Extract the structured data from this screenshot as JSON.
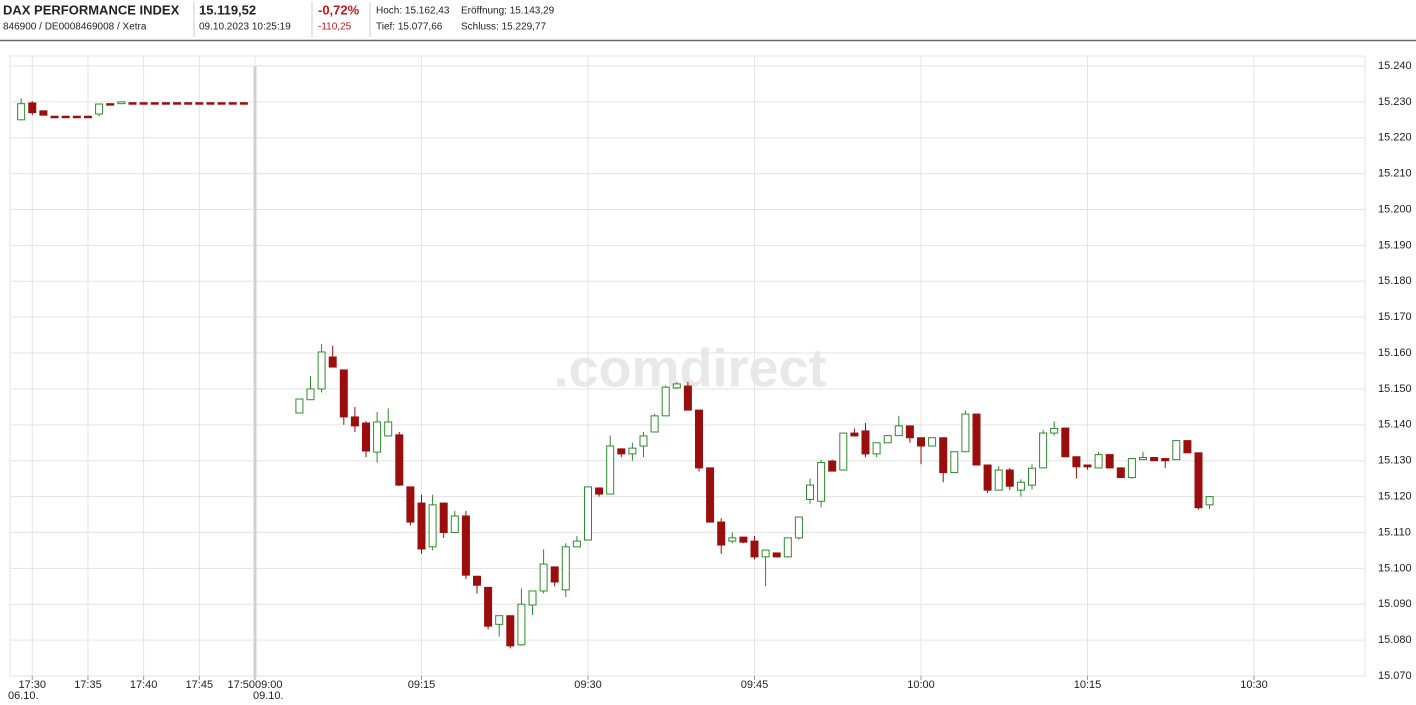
{
  "header": {
    "name": "DAX PERFORMANCE INDEX",
    "ids": "846900 / DE0008469008 / Xetra",
    "price": "15.119,52",
    "timestamp": "09.10.2023 10:25:19",
    "change_pct": "-0,72%",
    "change_abs": "-110,25",
    "high": "Hoch: 15.162,43",
    "low": "Tief: 15.077,66",
    "open": "Eröffnung: 15.143,29",
    "close": "Schluss: 15.229,77"
  },
  "chart_data": {
    "type": "candlestick",
    "watermark": ".comdirect",
    "grid": true,
    "up_color": "#2e8b2e",
    "down_color": "#9b0e0e",
    "ylim": [
      15070,
      15240
    ],
    "yticks": [
      {
        "value": 15070,
        "label": "15.070"
      },
      {
        "value": 15080,
        "label": "15.080"
      },
      {
        "value": 15090,
        "label": "15.090"
      },
      {
        "value": 15100,
        "label": "15.100"
      },
      {
        "value": 15110,
        "label": "15.110"
      },
      {
        "value": 15120,
        "label": "15.120"
      },
      {
        "value": 15130,
        "label": "15.130"
      },
      {
        "value": 15140,
        "label": "15.140"
      },
      {
        "value": 15150,
        "label": "15.150"
      },
      {
        "value": 15160,
        "label": "15.160"
      },
      {
        "value": 15170,
        "label": "15.170"
      },
      {
        "value": 15180,
        "label": "15.180"
      },
      {
        "value": 15190,
        "label": "15.190"
      },
      {
        "value": 15200,
        "label": "15.200"
      },
      {
        "value": 15210,
        "label": "15.210"
      },
      {
        "value": 15220,
        "label": "15.220"
      },
      {
        "value": 15230,
        "label": "15.230"
      },
      {
        "value": 15240,
        "label": "15.240"
      }
    ],
    "sessions": [
      {
        "date": "06.10.",
        "xlim": [
          "17:28",
          "17:50"
        ],
        "xticks": [
          "17:30",
          "17:35",
          "17:40",
          "17:45",
          "17:50"
        ],
        "candles": [
          {
            "t": "17:29",
            "o": 15225,
            "h": 15231,
            "l": 15225,
            "c": 15229.5
          },
          {
            "t": "17:30",
            "o": 15229.7,
            "h": 15230.2,
            "l": 15226.3,
            "c": 15227
          },
          {
            "t": "17:31",
            "o": 15227.5,
            "h": 15227.5,
            "l": 15226.3,
            "c": 15226.3
          },
          {
            "t": "17:32",
            "o": 15226,
            "h": 15226,
            "l": 15226,
            "c": 15226
          },
          {
            "t": "17:33",
            "o": 15226,
            "h": 15226,
            "l": 15226,
            "c": 15226
          },
          {
            "t": "17:34",
            "o": 15226,
            "h": 15226,
            "l": 15226,
            "c": 15226
          },
          {
            "t": "17:35",
            "o": 15226,
            "h": 15226,
            "l": 15226,
            "c": 15226
          },
          {
            "t": "17:36",
            "o": 15226.6,
            "h": 15229.4,
            "l": 15226,
            "c": 15229.4
          },
          {
            "t": "17:37",
            "o": 15229.5,
            "h": 15229.5,
            "l": 15229.5,
            "c": 15229.5
          },
          {
            "t": "17:38",
            "o": 15229.5,
            "h": 15230,
            "l": 15229.5,
            "c": 15230
          },
          {
            "t": "17:39",
            "o": 15229.77,
            "h": 15229.77,
            "l": 15229.77,
            "c": 15229.77
          },
          {
            "t": "17:40",
            "o": 15229.77,
            "h": 15229.77,
            "l": 15229.77,
            "c": 15229.77
          },
          {
            "t": "17:41",
            "o": 15229.77,
            "h": 15229.77,
            "l": 15229.77,
            "c": 15229.77
          },
          {
            "t": "17:42",
            "o": 15229.77,
            "h": 15229.77,
            "l": 15229.77,
            "c": 15229.77
          },
          {
            "t": "17:43",
            "o": 15229.77,
            "h": 15229.77,
            "l": 15229.77,
            "c": 15229.77
          },
          {
            "t": "17:44",
            "o": 15229.77,
            "h": 15229.77,
            "l": 15229.77,
            "c": 15229.77
          },
          {
            "t": "17:45",
            "o": 15229.77,
            "h": 15229.77,
            "l": 15229.77,
            "c": 15229.77
          },
          {
            "t": "17:46",
            "o": 15229.77,
            "h": 15229.77,
            "l": 15229.77,
            "c": 15229.77
          },
          {
            "t": "17:47",
            "o": 15229.77,
            "h": 15229.77,
            "l": 15229.77,
            "c": 15229.77
          },
          {
            "t": "17:48",
            "o": 15229.77,
            "h": 15229.77,
            "l": 15229.77,
            "c": 15229.77
          },
          {
            "t": "17:49",
            "o": 15229.77,
            "h": 15229.77,
            "l": 15229.77,
            "c": 15229.77
          }
        ]
      },
      {
        "date": "09.10.",
        "xlim": [
          "09:00",
          "10:40"
        ],
        "xticks": [
          "09:00",
          "09:15",
          "09:30",
          "09:45",
          "10:00",
          "10:15",
          "10:30"
        ],
        "candles": [
          {
            "t": "09:04",
            "o": 15143.3,
            "h": 15147.2,
            "l": 15143.3,
            "c": 15147.2
          },
          {
            "t": "09:05",
            "o": 15147,
            "h": 15153.6,
            "l": 15147,
            "c": 15150
          },
          {
            "t": "09:06",
            "o": 15150,
            "h": 15162.5,
            "l": 15149,
            "c": 15160.3
          },
          {
            "t": "09:07",
            "o": 15158.9,
            "h": 15162,
            "l": 15156,
            "c": 15156.1
          },
          {
            "t": "09:08",
            "o": 15155.3,
            "h": 15155.3,
            "l": 15140,
            "c": 15142.2
          },
          {
            "t": "09:09",
            "o": 15142.2,
            "h": 15145,
            "l": 15138,
            "c": 15139.7
          },
          {
            "t": "09:10",
            "o": 15140.5,
            "h": 15141,
            "l": 15131,
            "c": 15132.7
          },
          {
            "t": "09:11",
            "o": 15132.4,
            "h": 15143.6,
            "l": 15129.5,
            "c": 15140.8
          },
          {
            "t": "09:12",
            "o": 15136.9,
            "h": 15144.6,
            "l": 15136.9,
            "c": 15140.8
          },
          {
            "t": "09:13",
            "o": 15137.2,
            "h": 15138,
            "l": 15123,
            "c": 15123.2
          },
          {
            "t": "09:14",
            "o": 15122.7,
            "h": 15122.7,
            "l": 15112,
            "c": 15112.9
          },
          {
            "t": "09:15",
            "o": 15118.2,
            "h": 15120.5,
            "l": 15104,
            "c": 15105.4
          },
          {
            "t": "09:16",
            "o": 15106,
            "h": 15120.5,
            "l": 15105,
            "c": 15117.7
          },
          {
            "t": "09:17",
            "o": 15118.2,
            "h": 15118.2,
            "l": 15108.5,
            "c": 15110
          },
          {
            "t": "09:18",
            "o": 15110,
            "h": 15116,
            "l": 15110,
            "c": 15114.6
          },
          {
            "t": "09:19",
            "o": 15114.6,
            "h": 15116,
            "l": 15097,
            "c": 15098.1
          },
          {
            "t": "09:20",
            "o": 15097.8,
            "h": 15097.8,
            "l": 15093,
            "c": 15095.3
          },
          {
            "t": "09:21",
            "o": 15094.7,
            "h": 15094.7,
            "l": 15083,
            "c": 15083.9
          },
          {
            "t": "09:22",
            "o": 15084.4,
            "h": 15086.8,
            "l": 15081,
            "c": 15086.8
          },
          {
            "t": "09:23",
            "o": 15086.8,
            "h": 15086.8,
            "l": 15077.7,
            "c": 15078.4
          },
          {
            "t": "09:24",
            "o": 15078.7,
            "h": 15094.4,
            "l": 15078.4,
            "c": 15090
          },
          {
            "t": "09:25",
            "o": 15089.8,
            "h": 15093.7,
            "l": 15087,
            "c": 15093.7
          },
          {
            "t": "09:26",
            "o": 15093.7,
            "h": 15105.3,
            "l": 15093,
            "c": 15101.2
          },
          {
            "t": "09:27",
            "o": 15100.4,
            "h": 15100.4,
            "l": 15095,
            "c": 15096.2
          },
          {
            "t": "09:28",
            "o": 15094,
            "h": 15107,
            "l": 15092,
            "c": 15106
          },
          {
            "t": "09:29",
            "o": 15106,
            "h": 15109,
            "l": 15106,
            "c": 15107.6
          },
          {
            "t": "09:30",
            "o": 15107.9,
            "h": 15122.7,
            "l": 15107.9,
            "c": 15122.7
          },
          {
            "t": "09:31",
            "o": 15122.4,
            "h": 15122.4,
            "l": 15120,
            "c": 15120.7
          },
          {
            "t": "09:32",
            "o": 15120.7,
            "h": 15137,
            "l": 15120.7,
            "c": 15134.1
          },
          {
            "t": "09:33",
            "o": 15133.3,
            "h": 15133.3,
            "l": 15131,
            "c": 15131.9
          },
          {
            "t": "09:34",
            "o": 15131.9,
            "h": 15135,
            "l": 15130,
            "c": 15133.5
          },
          {
            "t": "09:35",
            "o": 15134.1,
            "h": 15138,
            "l": 15131,
            "c": 15136.9
          },
          {
            "t": "09:36",
            "o": 15138,
            "h": 15143,
            "l": 15138,
            "c": 15142.5
          },
          {
            "t": "09:37",
            "o": 15142.5,
            "h": 15151,
            "l": 15142.5,
            "c": 15150.5
          },
          {
            "t": "09:38",
            "o": 15150.3,
            "h": 15152,
            "l": 15150,
            "c": 15151.4
          },
          {
            "t": "09:39",
            "o": 15150.8,
            "h": 15152,
            "l": 15144,
            "c": 15144.1
          },
          {
            "t": "09:40",
            "o": 15144.1,
            "h": 15144.1,
            "l": 15127,
            "c": 15128
          },
          {
            "t": "09:41",
            "o": 15128,
            "h": 15128,
            "l": 15112.9,
            "c": 15112.9
          },
          {
            "t": "09:42",
            "o": 15112.9,
            "h": 15114,
            "l": 15104,
            "c": 15106.5
          },
          {
            "t": "09:43",
            "o": 15107.6,
            "h": 15110,
            "l": 15107,
            "c": 15108.5
          },
          {
            "t": "09:44",
            "o": 15108.7,
            "h": 15108.7,
            "l": 15107,
            "c": 15107.3
          },
          {
            "t": "09:45",
            "o": 15107.6,
            "h": 15109,
            "l": 15102.5,
            "c": 15103.2
          },
          {
            "t": "09:46",
            "o": 15103.2,
            "h": 15105.1,
            "l": 15095,
            "c": 15105.1
          },
          {
            "t": "09:47",
            "o": 15104.3,
            "h": 15104.3,
            "l": 15103,
            "c": 15103.2
          },
          {
            "t": "09:48",
            "o": 15103.2,
            "h": 15108.5,
            "l": 15103,
            "c": 15108.5
          },
          {
            "t": "09:49",
            "o": 15108.5,
            "h": 15114.3,
            "l": 15108,
            "c": 15114.3
          },
          {
            "t": "09:50",
            "o": 15119.2,
            "h": 15125,
            "l": 15118,
            "c": 15123.2
          },
          {
            "t": "09:51",
            "o": 15118.7,
            "h": 15130.3,
            "l": 15117,
            "c": 15129.5
          },
          {
            "t": "09:52",
            "o": 15129.9,
            "h": 15130.3,
            "l": 15127,
            "c": 15127.1
          },
          {
            "t": "09:53",
            "o": 15127.4,
            "h": 15137.7,
            "l": 15127.4,
            "c": 15137.7
          },
          {
            "t": "09:54",
            "o": 15137.7,
            "h": 15139,
            "l": 15136.9,
            "c": 15136.9
          },
          {
            "t": "09:55",
            "o": 15138.3,
            "h": 15140.5,
            "l": 15131,
            "c": 15131.9
          },
          {
            "t": "09:56",
            "o": 15131.9,
            "h": 15135,
            "l": 15131,
            "c": 15135
          },
          {
            "t": "09:57",
            "o": 15135,
            "h": 15137,
            "l": 15135,
            "c": 15137
          },
          {
            "t": "09:58",
            "o": 15137,
            "h": 15142.5,
            "l": 15137,
            "c": 15139.7
          },
          {
            "t": "09:59",
            "o": 15139.7,
            "h": 15139.7,
            "l": 15135,
            "c": 15136.4
          },
          {
            "t": "10:00",
            "o": 15136.4,
            "h": 15136.4,
            "l": 15129,
            "c": 15134.1
          },
          {
            "t": "10:01",
            "o": 15134.1,
            "h": 15136.4,
            "l": 15134,
            "c": 15136.4
          },
          {
            "t": "10:02",
            "o": 15136.4,
            "h": 15136.4,
            "l": 15124,
            "c": 15126.7
          },
          {
            "t": "10:03",
            "o": 15126.7,
            "h": 15132.5,
            "l": 15126.7,
            "c": 15132.5
          },
          {
            "t": "10:04",
            "o": 15132.5,
            "h": 15144,
            "l": 15132.5,
            "c": 15143
          },
          {
            "t": "10:05",
            "o": 15143,
            "h": 15143,
            "l": 15128.8,
            "c": 15128.8
          },
          {
            "t": "10:06",
            "o": 15128.8,
            "h": 15128.8,
            "l": 15121,
            "c": 15121.8
          },
          {
            "t": "10:07",
            "o": 15121.8,
            "h": 15128.5,
            "l": 15121.8,
            "c": 15127.4
          },
          {
            "t": "10:08",
            "o": 15127.4,
            "h": 15128,
            "l": 15121.8,
            "c": 15122.9
          },
          {
            "t": "10:09",
            "o": 15121.8,
            "h": 15124.8,
            "l": 15120,
            "c": 15124
          },
          {
            "t": "10:10",
            "o": 15123.2,
            "h": 15129,
            "l": 15122,
            "c": 15127.9
          },
          {
            "t": "10:11",
            "o": 15128,
            "h": 15138.6,
            "l": 15128,
            "c": 15137.7
          },
          {
            "t": "10:12",
            "o": 15137.7,
            "h": 15141,
            "l": 15137,
            "c": 15139
          },
          {
            "t": "10:13",
            "o": 15139.1,
            "h": 15139.1,
            "l": 15131,
            "c": 15131.1
          },
          {
            "t": "10:14",
            "o": 15131.1,
            "h": 15131.1,
            "l": 15125,
            "c": 15128.3
          },
          {
            "t": "10:15",
            "o": 15128.8,
            "h": 15128.8,
            "l": 15127.5,
            "c": 15128.3
          },
          {
            "t": "10:16",
            "o": 15128,
            "h": 15132.5,
            "l": 15128,
            "c": 15131.7
          },
          {
            "t": "10:17",
            "o": 15131.7,
            "h": 15131.7,
            "l": 15128,
            "c": 15128
          },
          {
            "t": "10:18",
            "o": 15128,
            "h": 15128,
            "l": 15125.3,
            "c": 15125.3
          },
          {
            "t": "10:19",
            "o": 15125.3,
            "h": 15130.6,
            "l": 15125,
            "c": 15130.6
          },
          {
            "t": "10:20",
            "o": 15130.3,
            "h": 15132.5,
            "l": 15130.3,
            "c": 15130.9
          },
          {
            "t": "10:21",
            "o": 15130.9,
            "h": 15130.9,
            "l": 15130,
            "c": 15130
          },
          {
            "t": "10:22",
            "o": 15130.6,
            "h": 15130.6,
            "l": 15128,
            "c": 15130
          },
          {
            "t": "10:23",
            "o": 15130.3,
            "h": 15135.6,
            "l": 15130.3,
            "c": 15135.6
          },
          {
            "t": "10:24",
            "o": 15135.6,
            "h": 15135.6,
            "l": 15132.2,
            "c": 15132.2
          },
          {
            "t": "10:25",
            "o": 15132.2,
            "h": 15132.2,
            "l": 15116.4,
            "c": 15116.9
          },
          {
            "t": "10:26",
            "o": 15117.7,
            "h": 15120,
            "l": 15116.5,
            "c": 15120
          }
        ]
      }
    ]
  }
}
